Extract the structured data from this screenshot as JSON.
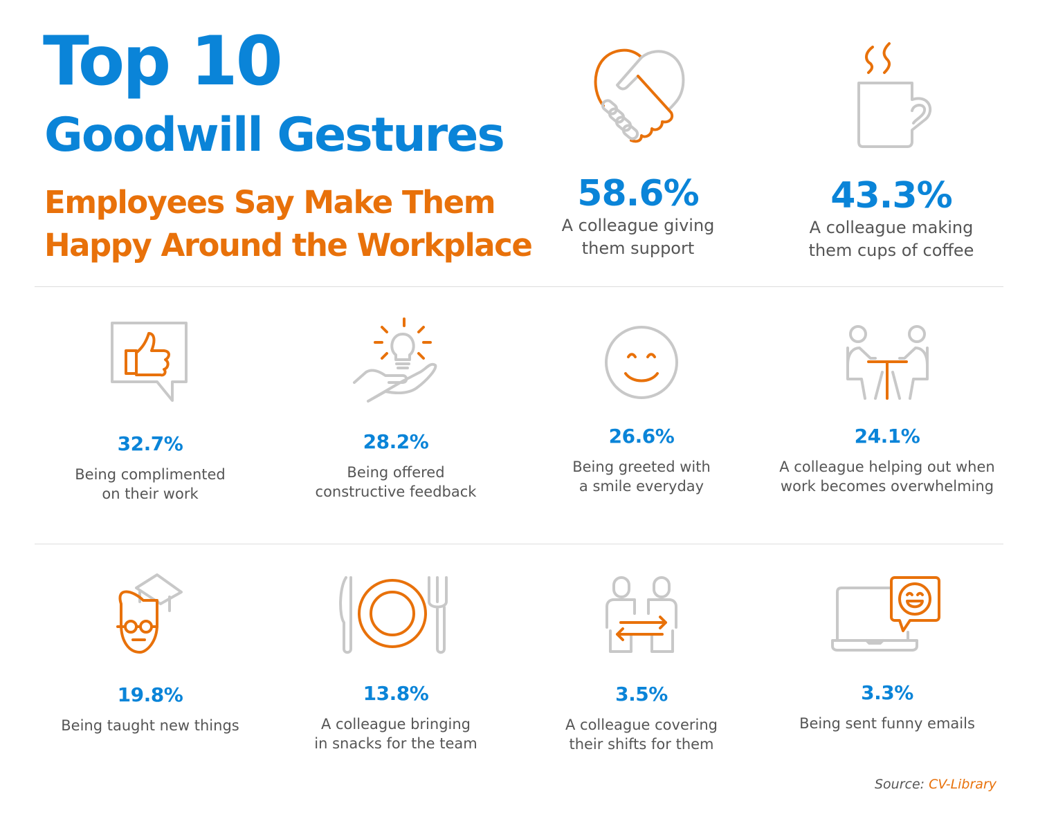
{
  "header": {
    "title_line1": "Top 10",
    "title_line2": "Goodwill Gestures",
    "subtitle_line1": "Employees Say Make Them",
    "subtitle_line2": "Happy Around the Workplace"
  },
  "colors": {
    "blue": "#0a84d8",
    "orange": "#e8710a",
    "icon_gray": "#c8c8c8",
    "text": "#555555"
  },
  "gestures": [
    {
      "percent": "58.6%",
      "line1": "A colleague giving",
      "line2": "them support",
      "icon": "handshake-heart-icon"
    },
    {
      "percent": "43.3%",
      "line1": "A colleague making",
      "line2": "them cups of coffee",
      "icon": "coffee-mug-icon"
    },
    {
      "percent": "32.7%",
      "line1": "Being complimented",
      "line2": "on their work",
      "icon": "thumbs-up-bubble-icon"
    },
    {
      "percent": "28.2%",
      "line1": "Being offered",
      "line2": "constructive feedback",
      "icon": "hand-lightbulb-icon"
    },
    {
      "percent": "26.6%",
      "line1": "Being greeted with",
      "line2": "a smile everyday",
      "icon": "smiley-icon"
    },
    {
      "percent": "24.1%",
      "line1": "A colleague helping out when",
      "line2": "work becomes overwhelming",
      "icon": "two-people-table-icon"
    },
    {
      "percent": "19.8%",
      "line1": "Being taught new things",
      "line2": "",
      "icon": "graduate-icon"
    },
    {
      "percent": "13.8%",
      "line1": "A colleague bringing",
      "line2": "in snacks for the team",
      "icon": "plate-cutlery-icon"
    },
    {
      "percent": "3.5%",
      "line1": "A colleague covering",
      "line2": "their shifts for them",
      "icon": "people-swap-icon"
    },
    {
      "percent": "3.3%",
      "line1": "Being sent funny emails",
      "line2": "",
      "icon": "laptop-laugh-icon"
    }
  ],
  "source": {
    "label": "Source:",
    "name": "CV-Library"
  }
}
